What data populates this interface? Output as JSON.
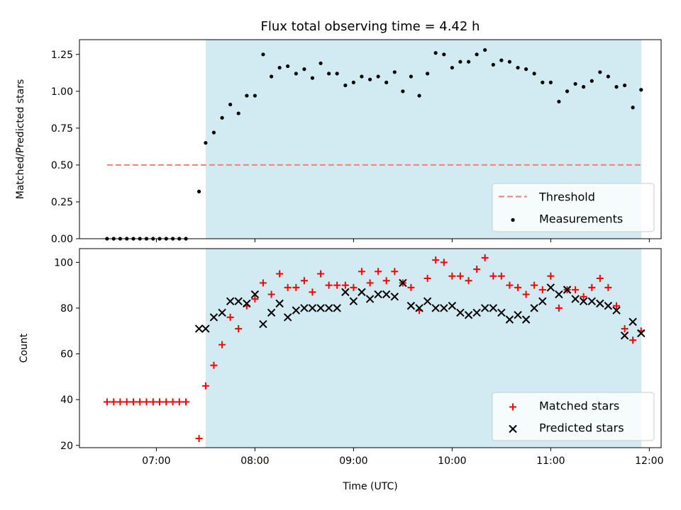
{
  "chart_data": {
    "title": "Flux total observing time = 4.42 h",
    "xlabel": "Time (UTC)",
    "x_ticks": [
      {
        "label": "07:00",
        "h": 7.0
      },
      {
        "label": "08:00",
        "h": 8.0
      },
      {
        "label": "09:00",
        "h": 9.0
      },
      {
        "label": "10:00",
        "h": 10.0
      },
      {
        "label": "11:00",
        "h": 11.0
      },
      {
        "label": "12:00",
        "h": 12.0
      }
    ],
    "xlim": [
      6.22,
      12.12
    ],
    "observing_window": {
      "start": 7.5,
      "end": 11.92,
      "color": "#add8e6"
    },
    "panels": [
      {
        "type": "scatter",
        "ylabel": "Matched/Predicted stars",
        "ylim": [
          0,
          1.35
        ],
        "y_ticks": [
          "0.00",
          "0.25",
          "0.50",
          "0.75",
          "1.00",
          "1.25"
        ],
        "y_tick_values": [
          0,
          0.25,
          0.5,
          0.75,
          1.0,
          1.25
        ],
        "legend_position": "lower-right",
        "threshold": {
          "name": "Threshold",
          "value": 0.5,
          "x_range": [
            6.5,
            11.92
          ],
          "color": "#f08080"
        },
        "series": [
          {
            "name": "Measurements",
            "marker": "dot",
            "color": "#000000",
            "x": [
              6.5,
              6.567,
              6.633,
              6.7,
              6.767,
              6.833,
              6.9,
              6.967,
              7.033,
              7.1,
              7.167,
              7.233,
              7.3,
              7.433,
              7.5,
              7.583,
              7.667,
              7.75,
              7.833,
              7.917,
              8.0,
              8.083,
              8.167,
              8.25,
              8.333,
              8.417,
              8.5,
              8.583,
              8.667,
              8.75,
              8.833,
              8.917,
              9.0,
              9.083,
              9.167,
              9.25,
              9.333,
              9.417,
              9.5,
              9.583,
              9.667,
              9.75,
              9.833,
              9.917,
              10.0,
              10.083,
              10.167,
              10.25,
              10.333,
              10.417,
              10.5,
              10.583,
              10.667,
              10.75,
              10.833,
              10.917,
              11.0,
              11.083,
              11.167,
              11.25,
              11.333,
              11.417,
              11.5,
              11.583,
              11.667,
              11.75,
              11.833,
              11.917
            ],
            "y": [
              0,
              0,
              0,
              0,
              0,
              0,
              0,
              0,
              0,
              0,
              0,
              0,
              0,
              0.32,
              0.65,
              0.72,
              0.82,
              0.91,
              0.85,
              0.97,
              0.97,
              1.25,
              1.1,
              1.16,
              1.17,
              1.12,
              1.15,
              1.09,
              1.19,
              1.12,
              1.12,
              1.04,
              1.06,
              1.1,
              1.08,
              1.1,
              1.06,
              1.13,
              1.0,
              1.1,
              0.97,
              1.12,
              1.26,
              1.25,
              1.16,
              1.2,
              1.2,
              1.25,
              1.28,
              1.18,
              1.21,
              1.2,
              1.16,
              1.15,
              1.12,
              1.06,
              1.06,
              0.93,
              1.0,
              1.05,
              1.03,
              1.07,
              1.13,
              1.1,
              1.03,
              1.04,
              0.89,
              1.01
            ]
          }
        ]
      },
      {
        "type": "scatter",
        "ylabel": "Count",
        "ylim": [
          19,
          106
        ],
        "y_ticks": [
          "20",
          "40",
          "60",
          "80",
          "100"
        ],
        "y_tick_values": [
          20,
          40,
          60,
          80,
          100
        ],
        "legend_position": "lower-right",
        "series": [
          {
            "name": "Matched stars",
            "marker": "plus",
            "color": "#ff0000",
            "x": [
              6.5,
              6.567,
              6.633,
              6.7,
              6.767,
              6.833,
              6.9,
              6.967,
              7.033,
              7.1,
              7.167,
              7.233,
              7.3,
              7.433,
              7.5,
              7.583,
              7.667,
              7.75,
              7.833,
              7.917,
              8.0,
              8.083,
              8.167,
              8.25,
              8.333,
              8.417,
              8.5,
              8.583,
              8.667,
              8.75,
              8.833,
              8.917,
              9.0,
              9.083,
              9.167,
              9.25,
              9.333,
              9.417,
              9.5,
              9.583,
              9.667,
              9.75,
              9.833,
              9.917,
              10.0,
              10.083,
              10.167,
              10.25,
              10.333,
              10.417,
              10.5,
              10.583,
              10.667,
              10.75,
              10.833,
              10.917,
              11.0,
              11.083,
              11.167,
              11.25,
              11.333,
              11.417,
              11.5,
              11.583,
              11.667,
              11.75,
              11.833,
              11.917
            ],
            "y": [
              39,
              39,
              39,
              39,
              39,
              39,
              39,
              39,
              39,
              39,
              39,
              39,
              39,
              23,
              46,
              55,
              64,
              76,
              71,
              81,
              84,
              91,
              86,
              95,
              89,
              89,
              92,
              87,
              95,
              90,
              90,
              90,
              89,
              96,
              91,
              96,
              92,
              96,
              91,
              89,
              79,
              93,
              101,
              100,
              94,
              94,
              92,
              97,
              102,
              94,
              94,
              90,
              89,
              86,
              90,
              88,
              94,
              80,
              88,
              88,
              85,
              89,
              93,
              89,
              81,
              71,
              66,
              70
            ]
          },
          {
            "name": "Predicted stars",
            "marker": "x",
            "color": "#000000",
            "x": [
              7.433,
              7.5,
              7.583,
              7.667,
              7.75,
              7.833,
              7.917,
              8.0,
              8.083,
              8.167,
              8.25,
              8.333,
              8.417,
              8.5,
              8.583,
              8.667,
              8.75,
              8.833,
              8.917,
              9.0,
              9.083,
              9.167,
              9.25,
              9.333,
              9.417,
              9.5,
              9.583,
              9.667,
              9.75,
              9.833,
              9.917,
              10.0,
              10.083,
              10.167,
              10.25,
              10.333,
              10.417,
              10.5,
              10.583,
              10.667,
              10.75,
              10.833,
              10.917,
              11.0,
              11.083,
              11.167,
              11.25,
              11.333,
              11.417,
              11.5,
              11.583,
              11.667,
              11.75,
              11.833,
              11.917
            ],
            "y": [
              71,
              71,
              76,
              78,
              83,
              83,
              82,
              86,
              73,
              78,
              82,
              76,
              79,
              80,
              80,
              80,
              80,
              80,
              87,
              83,
              87,
              84,
              86,
              86,
              85,
              91,
              81,
              80,
              83,
              80,
              80,
              81,
              78,
              77,
              78,
              80,
              80,
              78,
              75,
              77,
              75,
              80,
              83,
              89,
              86,
              88,
              84,
              83,
              83,
              82,
              81,
              79,
              68,
              74,
              69
            ]
          }
        ]
      }
    ]
  }
}
